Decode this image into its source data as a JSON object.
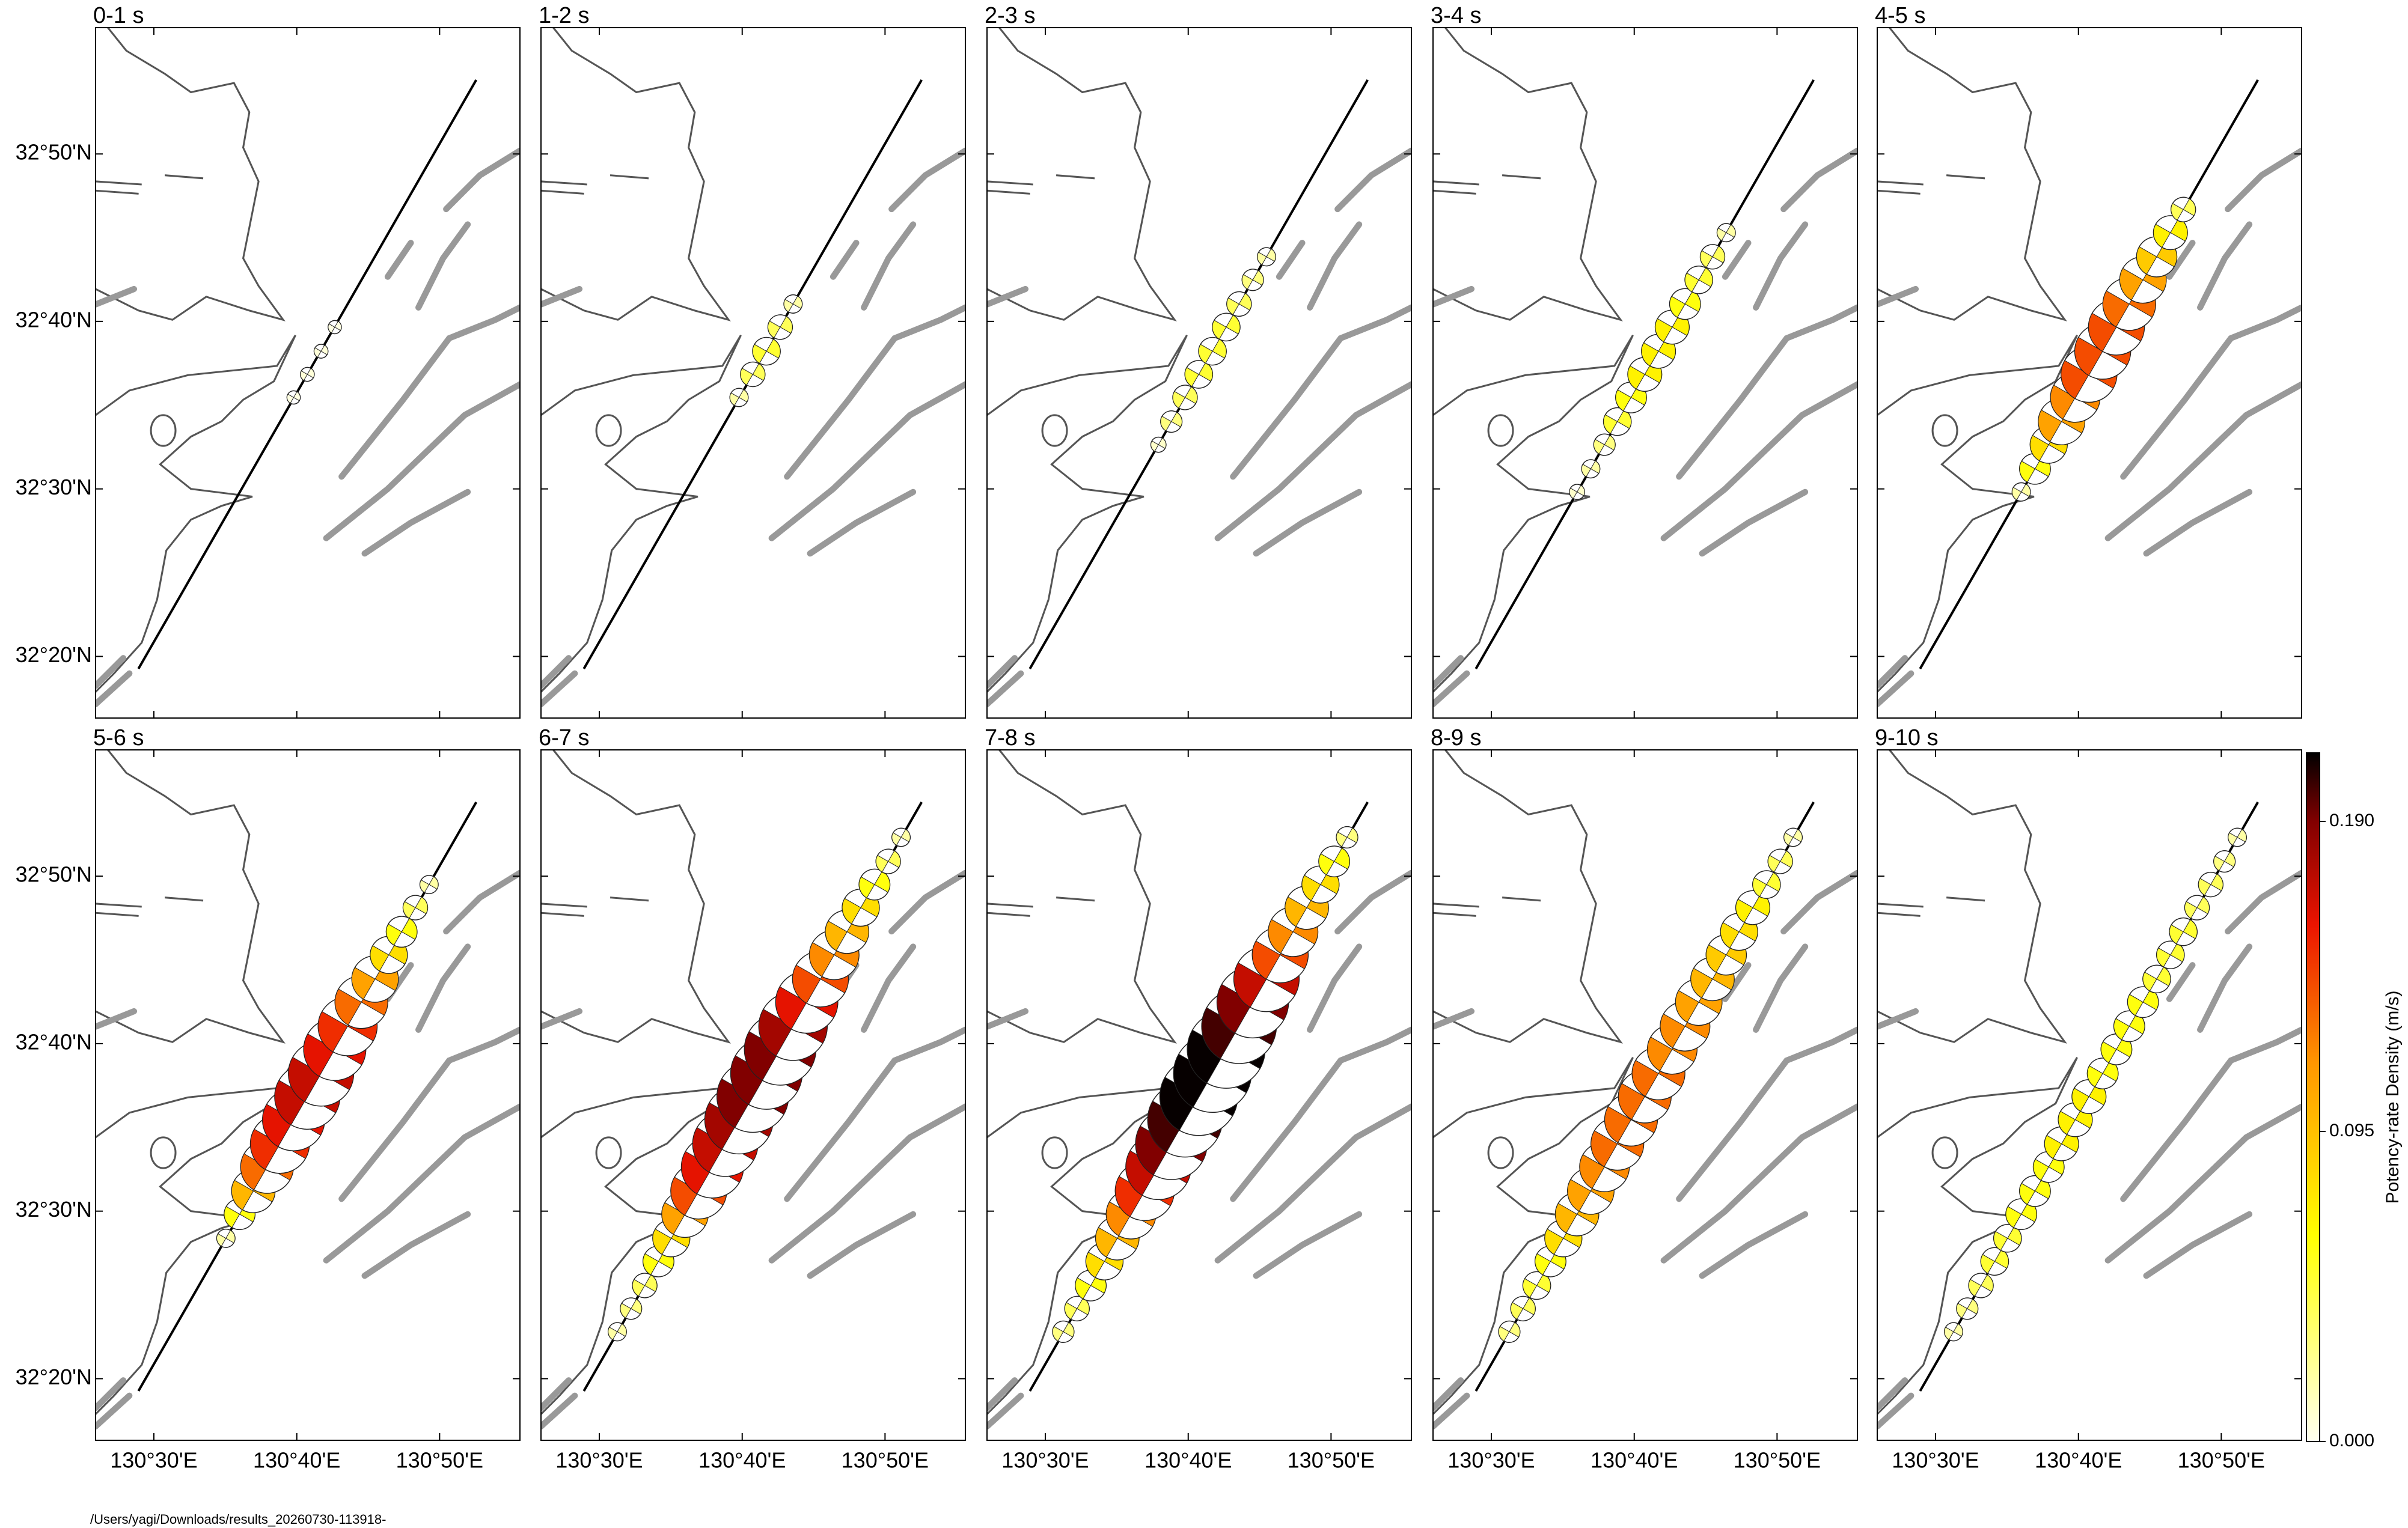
{
  "chart_data": {
    "type": "beachball-map",
    "xlim": [
      130.432,
      130.927
    ],
    "ylim": [
      32.272,
      32.959
    ],
    "xticks": [
      {
        "value": 130.5,
        "label": "130°30'E"
      },
      {
        "value": 130.6667,
        "label": "130°40'E"
      },
      {
        "value": 130.8333,
        "label": "130°50'E"
      }
    ],
    "yticks": [
      {
        "value": 32.3333,
        "label": "32°20'N"
      },
      {
        "value": 32.5,
        "label": "32°30'N"
      },
      {
        "value": 32.6667,
        "label": "32°40'N"
      },
      {
        "value": 32.8333,
        "label": "32°50'N"
      }
    ],
    "fault_trace": {
      "lon": [
        130.482,
        130.876
      ],
      "lat": [
        32.321,
        32.907
      ]
    },
    "subfault_lon": [
      130.521,
      130.537,
      130.553,
      130.569,
      130.584,
      130.6,
      130.616,
      130.632,
      130.647,
      130.663,
      130.679,
      130.695,
      130.711,
      130.726,
      130.742,
      130.758,
      130.774,
      130.789,
      130.805,
      130.821,
      130.837,
      130.852
    ],
    "subfault_lat": [
      32.38,
      32.403,
      32.426,
      32.45,
      32.473,
      32.497,
      32.52,
      32.544,
      32.567,
      32.591,
      32.614,
      32.637,
      32.661,
      32.684,
      32.708,
      32.731,
      32.755,
      32.778,
      32.802,
      32.825,
      32.848,
      32.872
    ],
    "panels": [
      {
        "title": "0-1 s",
        "values": [
          null,
          null,
          null,
          null,
          null,
          null,
          null,
          null,
          null,
          0.004,
          0.006,
          0.006,
          0.004,
          null,
          null,
          null,
          null,
          null,
          null,
          null,
          null,
          null
        ]
      },
      {
        "title": "1-2 s",
        "values": [
          null,
          null,
          null,
          null,
          null,
          null,
          null,
          null,
          null,
          0.02,
          0.04,
          0.05,
          0.04,
          0.02,
          null,
          null,
          null,
          null,
          null,
          null,
          null,
          null
        ]
      },
      {
        "title": "2-3 s",
        "values": [
          null,
          null,
          null,
          null,
          null,
          null,
          null,
          0.01,
          0.03,
          0.04,
          0.05,
          0.05,
          0.05,
          0.04,
          0.03,
          0.02,
          null,
          null,
          null,
          null,
          null,
          null
        ]
      },
      {
        "title": "3-4 s",
        "values": [
          null,
          null,
          null,
          null,
          null,
          0.01,
          0.02,
          0.03,
          0.05,
          0.06,
          0.07,
          0.07,
          0.07,
          0.06,
          0.05,
          0.04,
          0.02,
          null,
          null,
          null,
          null,
          null
        ]
      },
      {
        "title": "4-5 s",
        "values": [
          null,
          null,
          null,
          null,
          null,
          0.02,
          0.06,
          0.08,
          0.11,
          0.12,
          0.14,
          0.14,
          0.14,
          0.13,
          0.11,
          0.09,
          0.07,
          0.04,
          null,
          null,
          null,
          null
        ]
      },
      {
        "title": "5-6 s",
        "values": [
          null,
          null,
          null,
          null,
          0.02,
          0.06,
          0.1,
          0.13,
          0.15,
          0.16,
          0.17,
          0.17,
          0.16,
          0.15,
          0.13,
          0.11,
          0.08,
          0.06,
          0.04,
          0.02,
          null,
          null
        ]
      },
      {
        "title": "6-7 s",
        "values": [
          0.02,
          0.03,
          0.04,
          0.06,
          0.08,
          0.11,
          0.14,
          0.16,
          0.17,
          0.18,
          0.19,
          0.19,
          0.19,
          0.18,
          0.16,
          0.14,
          0.12,
          0.1,
          0.08,
          0.06,
          0.04,
          0.02
        ]
      },
      {
        "title": "7-8 s",
        "values": [
          0.03,
          0.04,
          0.06,
          0.08,
          0.1,
          0.12,
          0.15,
          0.17,
          0.19,
          0.2,
          0.21,
          0.21,
          0.21,
          0.2,
          0.19,
          0.17,
          0.14,
          0.12,
          0.1,
          0.08,
          0.06,
          0.03
        ]
      },
      {
        "title": "8-9 s",
        "values": [
          0.03,
          0.04,
          0.05,
          0.06,
          0.08,
          0.1,
          0.11,
          0.12,
          0.13,
          0.13,
          0.13,
          0.13,
          0.12,
          0.12,
          0.11,
          0.1,
          0.09,
          0.08,
          0.07,
          0.05,
          0.04,
          0.02
        ]
      },
      {
        "title": "9-10 s",
        "values": [
          0.02,
          0.03,
          0.04,
          0.05,
          0.05,
          0.06,
          0.06,
          0.06,
          0.07,
          0.07,
          0.07,
          0.06,
          0.06,
          0.06,
          0.06,
          0.05,
          0.05,
          0.05,
          0.04,
          0.04,
          0.03,
          0.02
        ]
      }
    ],
    "colorbar": {
      "label": "Potency-rate Density (m/s)",
      "clim": [
        0,
        0.211
      ],
      "ticks": [
        {
          "value": 0,
          "label": "0.000"
        },
        0.095,
        {
          "value": 0.19,
          "label": "0.190"
        }
      ]
    }
  },
  "footer": "/Users/yagi/Downloads/results_20260730-113918-"
}
